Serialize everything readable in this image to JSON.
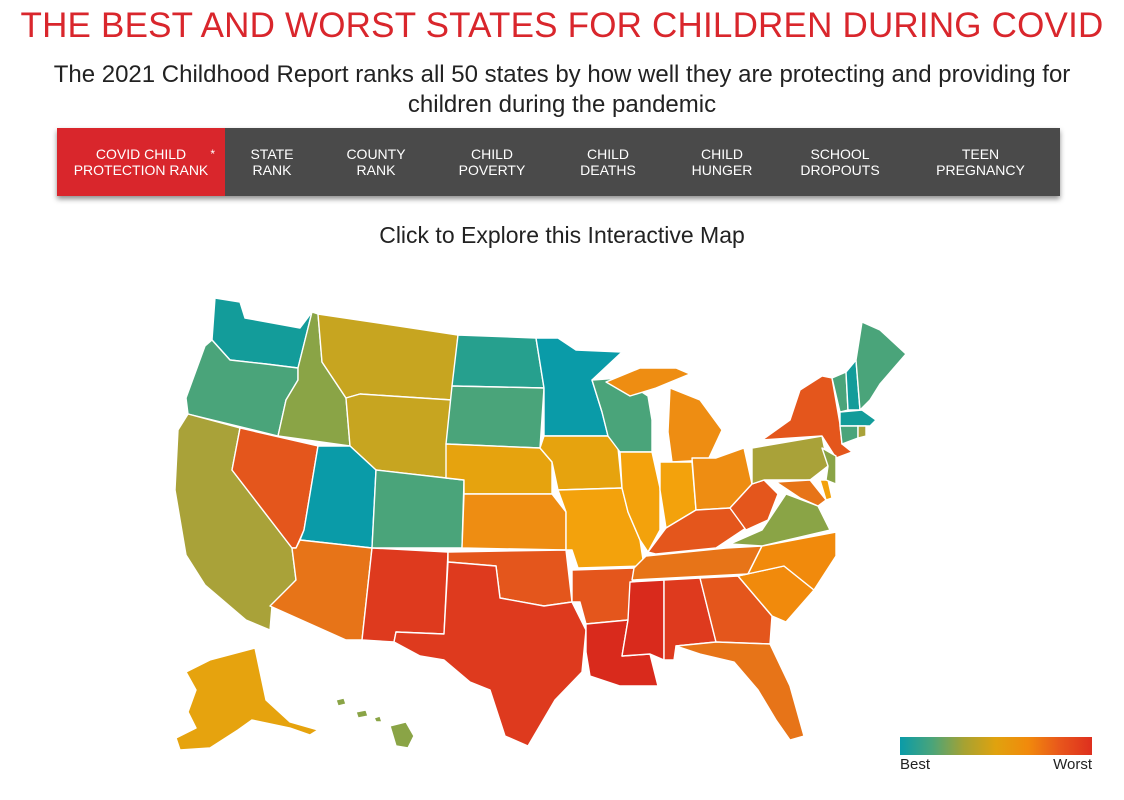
{
  "header": {
    "title": "THE BEST AND WORST STATES FOR CHILDREN DURING COVID",
    "subtitle": "The 2021 Childhood Report ranks all 50 states by how well they are protecting and providing for children during the pandemic"
  },
  "tabs": [
    {
      "line1": "COVID CHILD",
      "line2": "PROTECTION RANK",
      "active": true,
      "marker": "*"
    },
    {
      "line1": "STATE",
      "line2": "RANK"
    },
    {
      "line1": "COUNTY",
      "line2": "RANK"
    },
    {
      "line1": "CHILD",
      "line2": "POVERTY"
    },
    {
      "line1": "CHILD",
      "line2": "DEATHS"
    },
    {
      "line1": "CHILD",
      "line2": "HUNGER"
    },
    {
      "line1": "SCHOOL",
      "line2": "DROPOUTS"
    },
    {
      "line1": "TEEN",
      "line2": "PREGNANCY"
    }
  ],
  "map": {
    "prompt": "Click to Explore this Interactive Map"
  },
  "legend": {
    "best_label": "Best",
    "worst_label": "Worst",
    "colors": [
      "#0a9ba8",
      "#4aa47a",
      "#a6a232",
      "#e0a20e",
      "#f18a0c",
      "#e8561c",
      "#de2f1e"
    ]
  },
  "palette": {
    "accent": "#d9262c",
    "tabbar": "#4a4a4a",
    "teal": "#139c9a",
    "cyan_teal": "#0a9ba8",
    "green": "#4aa47a",
    "olive": "#8aa446",
    "olive_yellow": "#a9a239",
    "mustard": "#c7a520",
    "amber": "#e6a30e",
    "light_orange": "#f3a20c",
    "orange": "#ee8d12",
    "dark_orange": "#e77418",
    "red_orange": "#e4561c",
    "red": "#de3a1e",
    "deep_red": "#d92a1c"
  }
}
